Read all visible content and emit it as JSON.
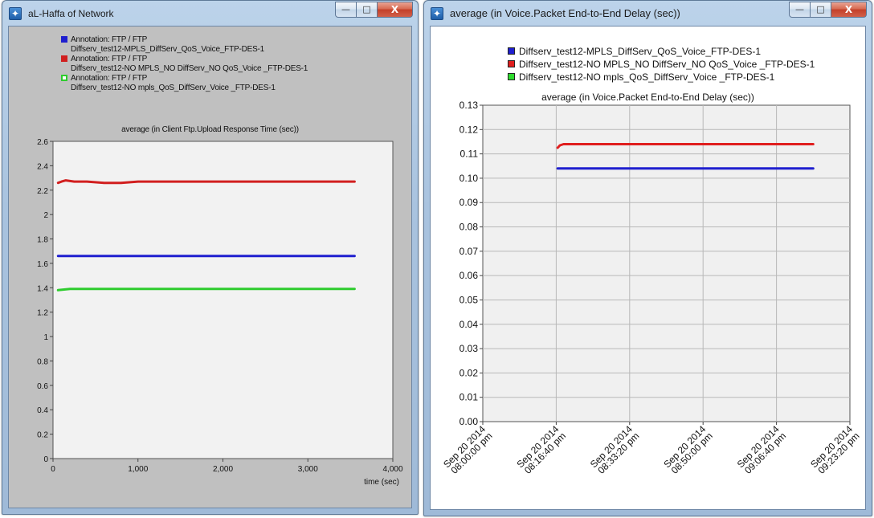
{
  "windows": {
    "left": {
      "title": "aL-Haffa of Network",
      "controls": {
        "minimize": "—",
        "maximize": "□",
        "close": "X"
      },
      "legend": [
        {
          "label": "Annotation: FTP / FTP",
          "detail": "Diffserv_test12-MPLS_DiffServ_QoS_Voice_FTP-DES-1",
          "color": "#1f1fcf",
          "fill": true
        },
        {
          "label": "Annotation: FTP / FTP",
          "detail": "Diffserv_test12-NO MPLS_NO DiffServ_NO QoS_Voice _FTP-DES-1",
          "color": "#d11f1f",
          "fill": true
        },
        {
          "label": "Annotation: FTP / FTP",
          "detail": "Diffserv_test12-NO mpls_QoS_DiffServ_Voice _FTP-DES-1",
          "color": "#2ecc2e",
          "fill": false
        }
      ]
    },
    "right": {
      "title": "average (in Voice.Packet End-to-End Delay (sec))",
      "controls": {
        "minimize": "—",
        "maximize": "□",
        "close": "X"
      },
      "legend": [
        {
          "label": "Diffserv_test12-MPLS_DiffServ_QoS_Voice_FTP-DES-1",
          "color": "#1f1fcf"
        },
        {
          "label": "Diffserv_test12-NO MPLS_NO DiffServ_NO QoS_Voice _FTP-DES-1",
          "color": "#e01e1e"
        },
        {
          "label": "Diffserv_test12-NO mpls_QoS_DiffServ_Voice _FTP-DES-1",
          "color": "#2edc2e"
        }
      ]
    }
  },
  "chart_data": [
    {
      "type": "line",
      "title": "average (in Client Ftp.Upload Response Time (sec))",
      "xlabel": "time (sec)",
      "ylabel": "",
      "xlim": [
        0,
        4000
      ],
      "ylim": [
        0,
        2.6
      ],
      "x_ticks": [
        0,
        1000,
        2000,
        3000,
        4000
      ],
      "x_tick_labels": [
        "0",
        "1,000",
        "2,000",
        "3,000",
        "4,000"
      ],
      "y_ticks": [
        0,
        0.2,
        0.4,
        0.6,
        0.8,
        1,
        1.2,
        1.4,
        1.6,
        1.8,
        2,
        2.2,
        2.4,
        2.6
      ],
      "y_tick_labels": [
        "0",
        "0.2",
        "0.4",
        "0.6",
        "0.8",
        "1",
        "1.2",
        "1.4",
        "1.6",
        "1.8",
        "2",
        "2.2",
        "2.4",
        "2.6"
      ],
      "series": [
        {
          "color": "#d11f1f",
          "x": [
            60,
            100,
            150,
            250,
            400,
            600,
            800,
            1000,
            1500,
            2000,
            2500,
            3000,
            3550
          ],
          "y": [
            2.26,
            2.27,
            2.28,
            2.27,
            2.27,
            2.26,
            2.26,
            2.27,
            2.27,
            2.27,
            2.27,
            2.27,
            2.27
          ]
        },
        {
          "color": "#1f1fcf",
          "x": [
            60,
            200,
            1000,
            2000,
            3000,
            3550
          ],
          "y": [
            1.66,
            1.66,
            1.66,
            1.66,
            1.66,
            1.66
          ]
        },
        {
          "color": "#2ecc2e",
          "x": [
            60,
            200,
            1000,
            2000,
            3000,
            3550
          ],
          "y": [
            1.38,
            1.39,
            1.39,
            1.39,
            1.39,
            1.39
          ]
        }
      ]
    },
    {
      "type": "line",
      "title": "average (in Voice.Packet End-to-End Delay (sec))",
      "xlabel": "",
      "ylabel": "",
      "xlim": [
        "2014-09-20T20:00:00",
        "2014-09-20T21:23:20"
      ],
      "ylim": [
        0,
        0.13
      ],
      "x_ticks": [
        "2014-09-20T20:00:00",
        "2014-09-20T20:16:40",
        "2014-09-20T20:33:20",
        "2014-09-20T20:50:00",
        "2014-09-20T21:06:40",
        "2014-09-20T21:23:20"
      ],
      "x_tick_labels": [
        [
          "Sep 20 2014",
          "08:00:00 pm"
        ],
        [
          "Sep 20 2014",
          "08:16:40 pm"
        ],
        [
          "Sep 20 2014",
          "08:33:20 pm"
        ],
        [
          "Sep 20 2014",
          "08:50:00 pm"
        ],
        [
          "Sep 20 2014",
          "09:06:40 pm"
        ],
        [
          "Sep 20 2014",
          "09:23:20 pm"
        ]
      ],
      "y_ticks": [
        0,
        0.01,
        0.02,
        0.03,
        0.04,
        0.05,
        0.06,
        0.07,
        0.08,
        0.09,
        0.1,
        0.11,
        0.12,
        0.13
      ],
      "y_tick_labels": [
        "0.00",
        "0.01",
        "0.02",
        "0.03",
        "0.04",
        "0.05",
        "0.06",
        "0.07",
        "0.08",
        "0.09",
        "0.10",
        "0.11",
        "0.12",
        "0.13"
      ],
      "series": [
        {
          "color": "#e01e1e",
          "x": [
            "2014-09-20T20:17:00",
            "2014-09-20T20:17:30",
            "2014-09-20T20:18:20",
            "2014-09-20T20:20:00",
            "2014-09-20T20:40:00",
            "2014-09-20T21:00:00",
            "2014-09-20T21:15:00"
          ],
          "y": [
            0.1125,
            0.1135,
            0.114,
            0.114,
            0.114,
            0.114,
            0.114
          ]
        },
        {
          "color": "#1f1fcf",
          "x": [
            "2014-09-20T20:17:00",
            "2014-09-20T20:40:00",
            "2014-09-20T21:00:00",
            "2014-09-20T21:15:00"
          ],
          "y": [
            0.104,
            0.104,
            0.104,
            0.104
          ]
        }
      ]
    }
  ]
}
